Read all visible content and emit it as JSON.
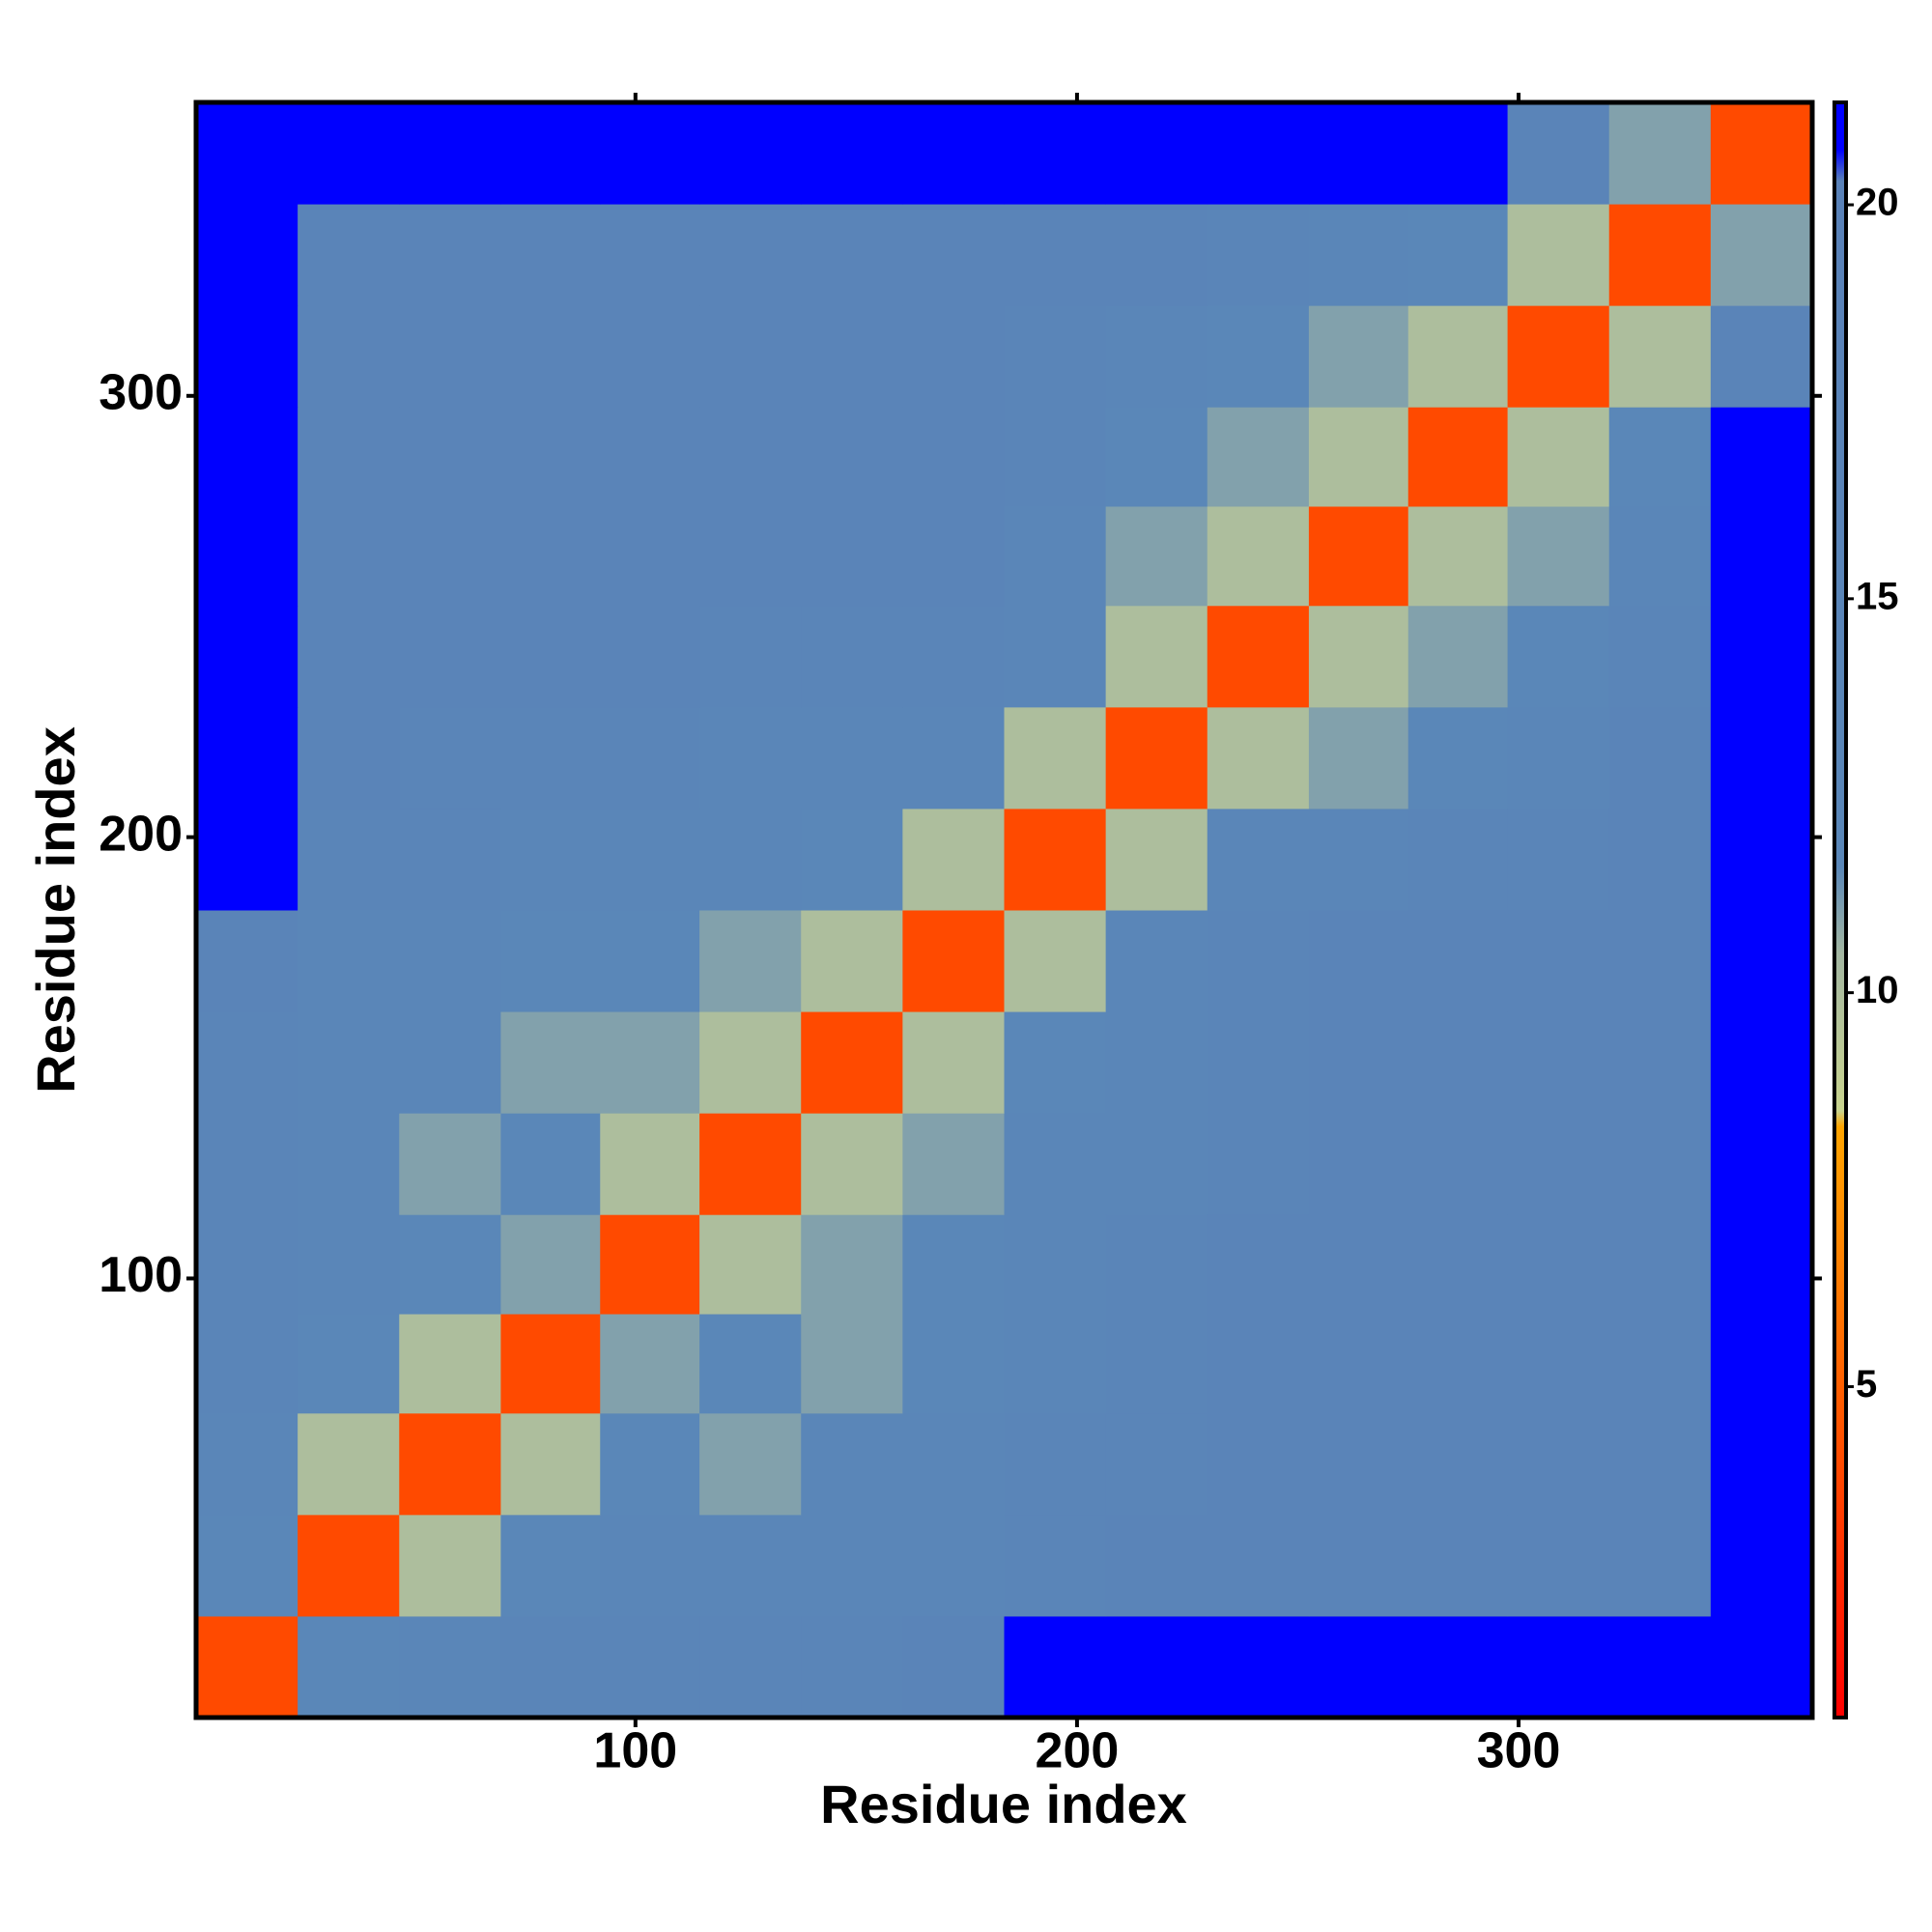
{
  "chart_data": {
    "type": "heatmap",
    "xlabel": "Residue index",
    "ylabel": "Residue index",
    "x": [
      12,
      35,
      58,
      81,
      103,
      126,
      149,
      172,
      195,
      218,
      241,
      264,
      286,
      309,
      332,
      355
    ],
    "y": [
      12,
      35,
      58,
      81,
      103,
      126,
      149,
      172,
      195,
      218,
      241,
      264,
      286,
      309,
      332,
      355
    ],
    "z": [
      [
        4,
        12,
        14,
        15,
        15,
        15,
        15,
        16,
        21,
        21,
        21,
        21,
        21,
        21,
        21,
        21
      ],
      [
        12,
        4,
        10,
        12,
        13,
        13,
        14,
        14,
        15,
        16,
        16,
        16,
        16,
        16,
        17,
        21
      ],
      [
        14,
        10,
        4,
        10,
        12,
        11,
        13,
        13,
        15,
        15,
        16,
        16,
        16,
        16,
        17,
        21
      ],
      [
        15,
        12,
        10,
        4,
        11,
        12,
        11,
        12,
        14,
        15,
        16,
        16,
        16,
        16,
        17,
        21
      ],
      [
        15,
        13,
        12,
        11,
        4,
        10,
        11,
        12,
        14,
        15,
        16,
        17,
        16,
        16,
        17,
        21
      ],
      [
        15,
        13,
        11,
        12,
        10,
        4,
        10,
        11,
        13,
        14,
        15,
        16,
        16,
        16,
        16,
        21
      ],
      [
        15,
        14,
        13,
        11,
        11,
        10,
        4,
        10,
        12,
        14,
        15,
        16,
        16,
        16,
        16,
        21
      ],
      [
        16,
        14,
        13,
        12,
        12,
        11,
        10,
        4,
        10,
        13,
        15,
        16,
        16,
        16,
        17,
        21
      ],
      [
        21,
        15,
        15,
        14,
        14,
        13,
        12,
        10,
        4,
        10,
        13,
        14,
        15,
        15,
        17,
        21
      ],
      [
        21,
        16,
        15,
        15,
        15,
        14,
        14,
        13,
        10,
        4,
        10,
        11,
        12,
        13,
        16,
        21
      ],
      [
        21,
        16,
        16,
        16,
        16,
        15,
        15,
        15,
        13,
        10,
        4,
        10,
        11,
        12,
        15,
        21
      ],
      [
        21,
        16,
        16,
        16,
        17,
        16,
        16,
        16,
        14,
        11,
        10,
        4,
        10,
        11,
        14,
        21
      ],
      [
        21,
        16,
        16,
        16,
        16,
        16,
        16,
        16,
        15,
        12,
        11,
        10,
        4,
        10,
        12,
        21
      ],
      [
        21,
        16,
        16,
        16,
        16,
        16,
        16,
        16,
        15,
        13,
        12,
        11,
        10,
        4,
        10,
        16
      ],
      [
        21,
        17,
        17,
        17,
        17,
        16,
        16,
        17,
        17,
        16,
        15,
        14,
        12,
        10,
        4,
        11
      ],
      [
        21,
        21,
        21,
        21,
        21,
        21,
        21,
        21,
        21,
        21,
        21,
        21,
        21,
        16,
        11,
        4
      ]
    ],
    "xlim": [
      0.5,
      366.5
    ],
    "ylim": [
      0.5,
      366.5
    ],
    "xticks": [
      100,
      200,
      300
    ],
    "yticks": [
      100,
      200,
      300
    ],
    "colorbar": {
      "lim": [
        0.8,
        21.3
      ],
      "ticks": [
        5,
        10,
        15,
        20
      ],
      "stops": [
        [
          0.8,
          "#ff0000"
        ],
        [
          4,
          "#ff4a00"
        ],
        [
          8.3,
          "#ffa500"
        ],
        [
          8.5,
          "#c9d48e"
        ],
        [
          10.5,
          "#a3b7a2"
        ],
        [
          11.6,
          "#5a87b8"
        ],
        [
          20.3,
          "#5a82b8"
        ],
        [
          20.7,
          "#0000ff"
        ],
        [
          21.3,
          "#0000ff"
        ]
      ]
    }
  }
}
